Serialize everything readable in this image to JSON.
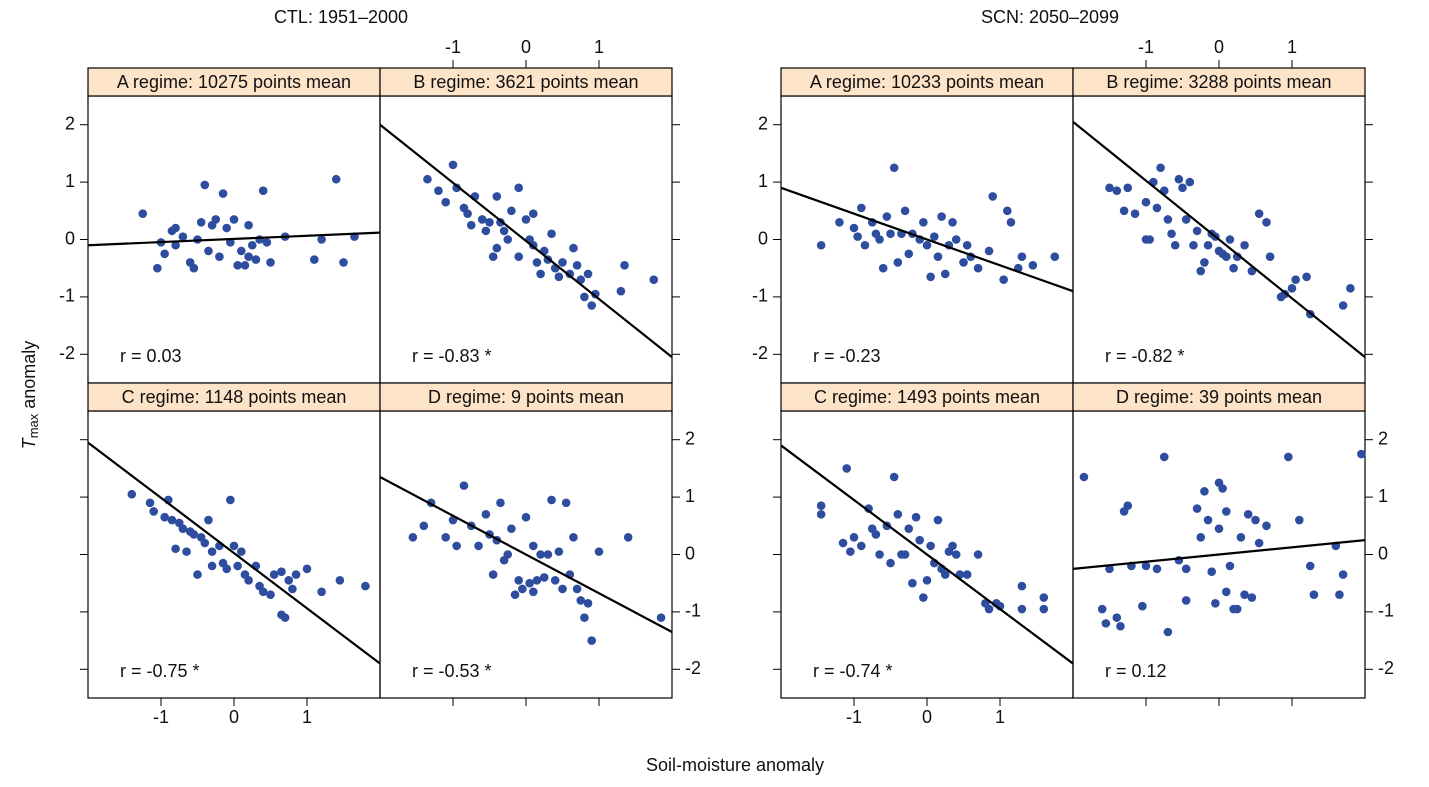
{
  "figure": {
    "titles": [
      "CTL: 1951–2000",
      "SCN: 2050–2099"
    ],
    "xlabel": "Soil-moisture anomaly",
    "ylabel": {
      "symbol": "T",
      "subscript": "max",
      "text": "anomaly"
    }
  },
  "chart_data": [
    {
      "type": "scatter",
      "group": 0,
      "row": 0,
      "col": 0,
      "strip": "A regime: 10275 points mean",
      "annotation": "r = 0.03",
      "color": "#2e4d9f",
      "xlim": [
        -2,
        2
      ],
      "ylim": [
        -2.5,
        2.5
      ],
      "xticks": [
        -1,
        0,
        1
      ],
      "yticks": [
        -2,
        -1,
        0,
        1,
        2
      ],
      "y_side": "left",
      "y_labels": true,
      "x": [
        -1.25,
        -1.05,
        -1.0,
        -0.85,
        -0.8,
        -0.8,
        -0.7,
        -0.6,
        -0.55,
        -0.5,
        -0.45,
        -0.4,
        -0.35,
        -0.3,
        -0.25,
        -0.15,
        -0.1,
        -0.05,
        0.0,
        0.05,
        0.1,
        0.15,
        0.2,
        0.25,
        0.3,
        0.35,
        0.4,
        0.45,
        0.5,
        0.7,
        1.1,
        1.2,
        1.4,
        1.5,
        1.65,
        -0.95,
        0.2,
        -0.2
      ],
      "y": [
        0.45,
        -0.5,
        -0.05,
        0.15,
        0.2,
        -0.1,
        0.05,
        -0.4,
        -0.5,
        0.0,
        0.3,
        0.95,
        -0.2,
        0.25,
        0.35,
        0.8,
        0.2,
        -0.05,
        0.35,
        -0.45,
        -0.2,
        -0.45,
        0.25,
        -0.1,
        -0.35,
        0.0,
        0.85,
        -0.05,
        -0.4,
        0.05,
        -0.35,
        0.0,
        1.05,
        -0.4,
        0.05,
        -0.25,
        -0.3,
        -0.3
      ],
      "fit": {
        "x": [
          -2,
          2
        ],
        "y": [
          -0.1,
          0.12
        ]
      }
    },
    {
      "type": "scatter",
      "group": 0,
      "row": 0,
      "col": 1,
      "strip": "B regime:  3621 points mean",
      "annotation": "r = -0.83 *",
      "color": "#2e4d9f",
      "xlim": [
        -2,
        2
      ],
      "ylim": [
        -2.5,
        2.5
      ],
      "xticks": [
        -1,
        0,
        1
      ],
      "yticks": [
        -2,
        -1,
        0,
        1,
        2
      ],
      "x_side": "top",
      "x_labels": true,
      "y_side": "right",
      "y_labels": false,
      "x": [
        -1.35,
        -1.2,
        -1.1,
        -1.0,
        -0.95,
        -0.85,
        -0.8,
        -0.75,
        -0.7,
        -0.6,
        -0.55,
        -0.5,
        -0.45,
        -0.4,
        -0.35,
        -0.3,
        -0.25,
        -0.2,
        -0.1,
        -0.1,
        0.0,
        0.05,
        0.1,
        0.1,
        0.15,
        0.2,
        0.25,
        0.3,
        0.35,
        0.4,
        0.45,
        0.5,
        0.6,
        0.65,
        0.7,
        0.75,
        0.8,
        0.85,
        0.9,
        0.95,
        1.3,
        1.35,
        1.75,
        -0.4
      ],
      "y": [
        1.05,
        0.85,
        0.65,
        1.3,
        0.9,
        0.55,
        0.45,
        0.25,
        0.75,
        0.35,
        0.15,
        0.3,
        -0.3,
        0.75,
        0.3,
        0.15,
        0.0,
        0.5,
        0.9,
        -0.3,
        0.35,
        0.0,
        -0.1,
        0.45,
        -0.4,
        -0.6,
        -0.2,
        -0.35,
        0.1,
        -0.5,
        -0.65,
        -0.4,
        -0.6,
        -0.15,
        -0.45,
        -0.7,
        -1.0,
        -0.6,
        -1.15,
        -0.95,
        -0.9,
        -0.45,
        -0.7,
        -0.15
      ],
      "fit": {
        "x": [
          -2,
          2
        ],
        "y": [
          2.0,
          -2.05
        ]
      }
    },
    {
      "type": "scatter",
      "group": 0,
      "row": 1,
      "col": 0,
      "strip": "C regime:  1148 points mean",
      "annotation": "r = -0.75 *",
      "color": "#2e4d9f",
      "xlim": [
        -2,
        2
      ],
      "ylim": [
        -2.5,
        2.5
      ],
      "xticks": [
        -1,
        0,
        1
      ],
      "yticks": [
        -2,
        -1,
        0,
        1,
        2
      ],
      "x_side": "bottom",
      "x_labels": true,
      "y_side": "left",
      "y_labels": false,
      "x": [
        -1.4,
        -1.15,
        -1.1,
        -0.95,
        -0.9,
        -0.85,
        -0.8,
        -0.75,
        -0.7,
        -0.65,
        -0.6,
        -0.55,
        -0.5,
        -0.45,
        -0.4,
        -0.35,
        -0.3,
        -0.3,
        -0.2,
        -0.15,
        -0.1,
        -0.05,
        0.0,
        0.05,
        0.1,
        0.15,
        0.2,
        0.3,
        0.35,
        0.4,
        0.5,
        0.55,
        0.65,
        0.65,
        0.7,
        0.75,
        0.8,
        0.85,
        1.0,
        1.2,
        1.45,
        1.8
      ],
      "y": [
        1.05,
        0.9,
        0.75,
        0.65,
        0.95,
        0.6,
        0.1,
        0.55,
        0.45,
        0.05,
        0.4,
        0.35,
        -0.35,
        0.3,
        0.2,
        0.6,
        0.05,
        -0.2,
        0.15,
        -0.15,
        -0.25,
        0.95,
        0.15,
        -0.2,
        0.05,
        -0.35,
        -0.45,
        -0.2,
        -0.55,
        -0.65,
        -0.7,
        -0.35,
        -0.3,
        -1.05,
        -1.1,
        -0.45,
        -0.6,
        -0.35,
        -0.25,
        -0.65,
        -0.45,
        -0.55
      ],
      "fit": {
        "x": [
          -2,
          2
        ],
        "y": [
          1.95,
          -1.9
        ]
      }
    },
    {
      "type": "scatter",
      "group": 0,
      "row": 1,
      "col": 1,
      "strip": "D regime:   9 points mean",
      "annotation": "r = -0.53 *",
      "color": "#2e4d9f",
      "xlim": [
        -2,
        2
      ],
      "ylim": [
        -2.5,
        2.5
      ],
      "xticks": [
        -1,
        0,
        1
      ],
      "yticks": [
        -2,
        -1,
        0,
        1,
        2
      ],
      "x_side": "bottom",
      "x_labels": false,
      "y_side": "right",
      "y_labels": true,
      "x": [
        -1.55,
        -1.4,
        -1.3,
        -1.1,
        -1.0,
        -0.95,
        -0.85,
        -0.75,
        -0.65,
        -0.55,
        -0.5,
        -0.45,
        -0.4,
        -0.35,
        -0.3,
        -0.25,
        -0.2,
        -0.15,
        -0.1,
        -0.05,
        0.0,
        0.05,
        0.1,
        0.1,
        0.15,
        0.2,
        0.25,
        0.3,
        0.35,
        0.4,
        0.45,
        0.5,
        0.55,
        0.6,
        0.65,
        0.7,
        0.75,
        0.8,
        0.85,
        0.9,
        1.0,
        1.4,
        1.85
      ],
      "y": [
        0.3,
        0.5,
        0.9,
        0.3,
        0.6,
        0.15,
        1.2,
        0.5,
        0.15,
        0.7,
        0.35,
        -0.35,
        0.25,
        0.9,
        -0.1,
        0.0,
        0.45,
        -0.7,
        -0.45,
        -0.6,
        0.65,
        -0.5,
        -0.65,
        0.15,
        -0.45,
        0.0,
        -0.4,
        0.0,
        0.95,
        -0.45,
        0.05,
        -0.6,
        0.9,
        -0.35,
        0.3,
        -0.6,
        -0.8,
        -1.1,
        -0.85,
        -1.5,
        0.05,
        0.3,
        -1.1
      ],
      "fit": {
        "x": [
          -2,
          2
        ],
        "y": [
          1.35,
          -1.35
        ]
      }
    },
    {
      "type": "scatter",
      "group": 1,
      "row": 0,
      "col": 0,
      "strip": "A regime: 10233 points mean",
      "annotation": "r = -0.23",
      "color": "#2e4d9f",
      "xlim": [
        -2,
        2
      ],
      "ylim": [
        -2.5,
        2.5
      ],
      "xticks": [
        -1,
        0,
        1
      ],
      "yticks": [
        -2,
        -1,
        0,
        1,
        2
      ],
      "y_side": "left",
      "y_labels": true,
      "x": [
        -1.45,
        -1.2,
        -1.0,
        -0.95,
        -0.9,
        -0.85,
        -0.75,
        -0.7,
        -0.65,
        -0.6,
        -0.55,
        -0.5,
        -0.45,
        -0.4,
        -0.35,
        -0.3,
        -0.25,
        -0.2,
        -0.1,
        -0.05,
        0.0,
        0.05,
        0.1,
        0.15,
        0.2,
        0.25,
        0.3,
        0.35,
        0.4,
        0.5,
        0.55,
        0.6,
        0.7,
        0.85,
        0.9,
        1.05,
        1.1,
        1.15,
        1.25,
        1.3,
        1.45,
        1.75
      ],
      "y": [
        -0.1,
        0.3,
        0.2,
        0.05,
        0.55,
        -0.1,
        0.3,
        0.1,
        0.0,
        -0.5,
        0.4,
        0.1,
        1.25,
        -0.4,
        0.1,
        0.5,
        -0.25,
        0.1,
        0.0,
        0.3,
        -0.1,
        -0.65,
        0.05,
        -0.3,
        0.4,
        -0.6,
        -0.1,
        0.3,
        0.0,
        -0.4,
        -0.1,
        -0.3,
        -0.5,
        -0.2,
        0.75,
        -0.7,
        0.5,
        0.3,
        -0.5,
        -0.3,
        -0.45,
        -0.3
      ],
      "fit": {
        "x": [
          -2,
          2
        ],
        "y": [
          0.9,
          -0.9
        ]
      }
    },
    {
      "type": "scatter",
      "group": 1,
      "row": 0,
      "col": 1,
      "strip": "B regime:  3288 points mean",
      "annotation": "r = -0.82 *",
      "color": "#2e4d9f",
      "xlim": [
        -2,
        2
      ],
      "ylim": [
        -2.5,
        2.5
      ],
      "xticks": [
        -1,
        0,
        1
      ],
      "yticks": [
        -2,
        -1,
        0,
        1,
        2
      ],
      "x_side": "top",
      "x_labels": true,
      "y_side": "right",
      "y_labels": false,
      "x": [
        -1.5,
        -1.4,
        -1.3,
        -1.25,
        -1.15,
        -1.0,
        -0.95,
        -0.9,
        -0.85,
        -0.8,
        -0.75,
        -0.7,
        -0.65,
        -0.6,
        -0.55,
        -0.5,
        -0.45,
        -0.4,
        -0.35,
        -0.3,
        -0.25,
        -0.2,
        -0.15,
        -0.1,
        -0.05,
        0.0,
        0.05,
        0.1,
        0.15,
        0.2,
        0.25,
        0.35,
        0.45,
        0.55,
        0.65,
        0.7,
        0.85,
        0.9,
        1.0,
        1.05,
        1.2,
        1.25,
        1.7,
        1.8,
        -1.0
      ],
      "y": [
        0.9,
        0.85,
        0.5,
        0.9,
        0.45,
        0.65,
        0.0,
        1.0,
        0.55,
        1.25,
        0.85,
        0.35,
        0.1,
        -0.1,
        1.05,
        0.9,
        0.35,
        1.0,
        -0.1,
        0.15,
        -0.55,
        -0.4,
        -0.1,
        0.1,
        0.05,
        -0.2,
        -0.25,
        -0.3,
        0.0,
        -0.5,
        -0.3,
        -0.1,
        -0.55,
        0.45,
        0.3,
        -0.3,
        -1.0,
        -0.95,
        -0.85,
        -0.7,
        -0.65,
        -1.3,
        -1.15,
        -0.85,
        0.0
      ],
      "fit": {
        "x": [
          -2,
          2
        ],
        "y": [
          2.05,
          -2.05
        ]
      }
    },
    {
      "type": "scatter",
      "group": 1,
      "row": 1,
      "col": 0,
      "strip": "C regime:  1493 points mean",
      "annotation": "r = -0.74 *",
      "color": "#2e4d9f",
      "xlim": [
        -2,
        2
      ],
      "ylim": [
        -2.5,
        2.5
      ],
      "xticks": [
        -1,
        0,
        1
      ],
      "yticks": [
        -2,
        -1,
        0,
        1,
        2
      ],
      "x_side": "bottom",
      "x_labels": true,
      "y_side": "left",
      "y_labels": false,
      "x": [
        -1.45,
        -1.45,
        -1.15,
        -1.1,
        -1.05,
        -1.0,
        -0.9,
        -0.8,
        -0.75,
        -0.7,
        -0.65,
        -0.55,
        -0.5,
        -0.45,
        -0.4,
        -0.35,
        -0.3,
        -0.25,
        -0.2,
        -0.15,
        -0.1,
        -0.05,
        0.0,
        0.05,
        0.1,
        0.15,
        0.2,
        0.25,
        0.3,
        0.35,
        0.4,
        0.45,
        0.55,
        0.7,
        0.8,
        0.85,
        0.95,
        1.0,
        1.3,
        1.3,
        1.6,
        1.6
      ],
      "y": [
        0.85,
        0.7,
        0.2,
        1.5,
        0.05,
        0.3,
        0.15,
        0.8,
        0.45,
        0.35,
        0.0,
        0.5,
        -0.15,
        1.35,
        0.7,
        0.0,
        0.0,
        0.45,
        -0.5,
        0.65,
        0.25,
        -0.75,
        -0.45,
        0.15,
        -0.15,
        0.6,
        -0.25,
        -0.35,
        0.05,
        0.15,
        0.0,
        -0.35,
        -0.35,
        0.0,
        -0.85,
        -0.95,
        -0.85,
        -0.9,
        -0.55,
        -0.95,
        -0.75,
        -0.95
      ],
      "fit": {
        "x": [
          -2,
          2
        ],
        "y": [
          1.9,
          -1.9
        ]
      }
    },
    {
      "type": "scatter",
      "group": 1,
      "row": 1,
      "col": 1,
      "strip": "D regime:   39 points mean",
      "annotation": "r = 0.12",
      "color": "#2e4d9f",
      "xlim": [
        -2,
        2
      ],
      "ylim": [
        -2.5,
        2.5
      ],
      "xticks": [
        -1,
        0,
        1
      ],
      "yticks": [
        -2,
        -1,
        0,
        1,
        2
      ],
      "x_side": "bottom",
      "x_labels": false,
      "y_side": "right",
      "y_labels": true,
      "x": [
        -1.85,
        -1.6,
        -1.55,
        -1.5,
        -1.4,
        -1.35,
        -1.3,
        -1.25,
        -1.2,
        -1.05,
        -1.0,
        -0.85,
        -0.75,
        -0.7,
        -0.55,
        -0.45,
        -0.45,
        -0.3,
        -0.25,
        -0.2,
        -0.15,
        -0.1,
        -0.05,
        0.0,
        0.0,
        0.05,
        0.1,
        0.1,
        0.15,
        0.2,
        0.25,
        0.3,
        0.35,
        0.4,
        0.45,
        0.5,
        0.55,
        0.65,
        0.95,
        1.1,
        1.25,
        1.3,
        1.6,
        1.65,
        1.7,
        1.95
      ],
      "y": [
        1.35,
        -0.95,
        -1.2,
        -0.25,
        -1.1,
        -1.25,
        0.75,
        0.85,
        -0.2,
        -0.9,
        -0.2,
        -0.25,
        1.7,
        -1.35,
        -0.1,
        -0.8,
        -0.25,
        0.8,
        0.3,
        1.1,
        0.6,
        -0.3,
        -0.85,
        0.45,
        1.25,
        1.15,
        0.75,
        -0.65,
        -0.2,
        -0.95,
        -0.95,
        0.3,
        -0.7,
        0.7,
        -0.75,
        0.6,
        0.2,
        0.5,
        1.7,
        0.6,
        -0.2,
        -0.7,
        0.15,
        -0.7,
        -0.35,
        1.75
      ],
      "fit": {
        "x": [
          -2,
          2
        ],
        "y": [
          -0.25,
          0.25
        ]
      }
    }
  ]
}
